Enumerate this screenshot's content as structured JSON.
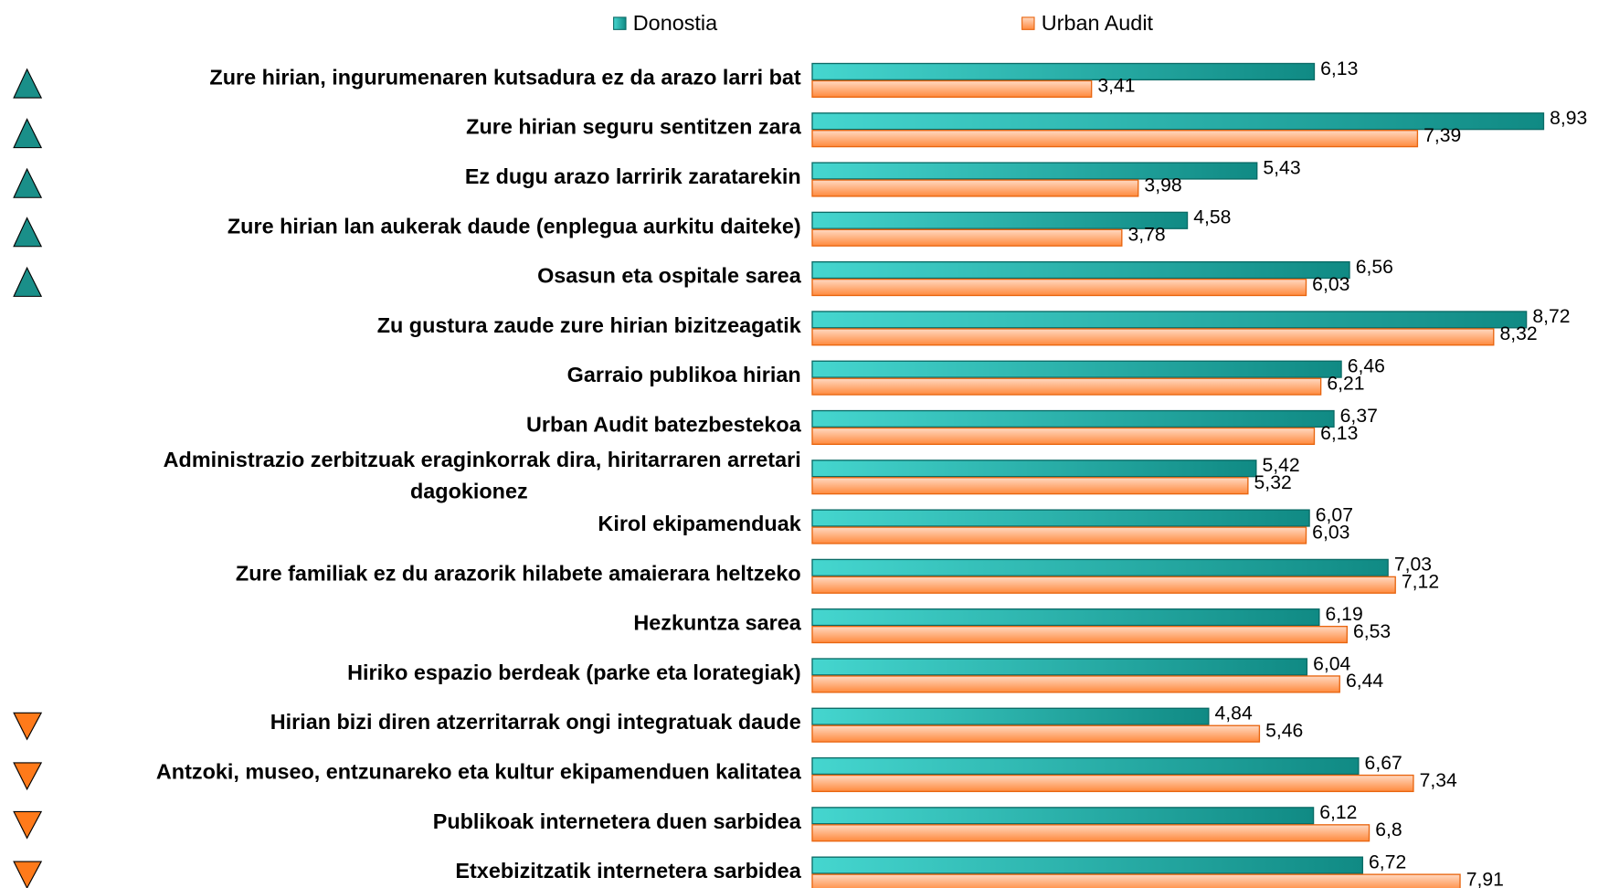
{
  "chart_data": {
    "type": "barh",
    "categories": [
      "Zure hirian, ingurumenaren kutsadura ez da arazo larri bat",
      "Zure hirian seguru sentitzen zara",
      "Ez dugu arazo larririk zaratarekin",
      "Zure hirian lan aukerak daude (enplegua aurkitu daiteke)",
      "Osasun eta ospitale sarea",
      "Zu gustura zaude zure hirian bizitzeagatik",
      "Garraio publikoa hirian",
      "Urban Audit batezbestekoa",
      "Administrazio zerbitzuak eraginkorrak dira, hiritarraren arretari dagokionez",
      "Kirol ekipamenduak",
      "Zure familiak ez du arazorik hilabete amaierara heltzeko",
      "Hezkuntza sarea",
      "Hiriko espazio berdeak (parke eta lorategiak)",
      "Hirian bizi diren atzerritarrak ongi integratuak daude",
      "Antzoki, museo, entzunareko eta kultur ekipamenduen kalitatea",
      "Publikoak internetera duen sarbidea",
      "Etxebizitzatik internetera sarbidea"
    ],
    "series": [
      {
        "name": "Donostia",
        "color": "#108a84",
        "values": [
          6.13,
          8.93,
          5.43,
          4.58,
          6.56,
          8.72,
          6.46,
          6.37,
          5.42,
          6.07,
          7.03,
          6.19,
          6.04,
          4.84,
          6.67,
          6.12,
          6.72
        ],
        "value_labels": [
          "6,13",
          "8,93",
          "5,43",
          "4,58",
          "6,56",
          "8,72",
          "6,46",
          "6,37",
          "5,42",
          "6,07",
          "7,03",
          "6,19",
          "6,04",
          "4,84",
          "6,67",
          "6,12",
          "6,72"
        ]
      },
      {
        "name": "Urban Audit",
        "color": "#ff8a3d",
        "values": [
          3.41,
          7.39,
          3.98,
          3.78,
          6.03,
          8.32,
          6.21,
          6.13,
          5.32,
          6.03,
          7.12,
          6.53,
          6.44,
          5.46,
          7.34,
          6.8,
          7.91
        ],
        "value_labels": [
          "3,41",
          "7,39",
          "3,98",
          "3,78",
          "6,03",
          "8,32",
          "6,21",
          "6,13",
          "5,32",
          "6,03",
          "7,12",
          "6,53",
          "6,44",
          "5,46",
          "7,34",
          "6,8",
          "7,91"
        ]
      }
    ],
    "xlim": [
      0,
      9.6
    ],
    "legend": "top"
  }
}
